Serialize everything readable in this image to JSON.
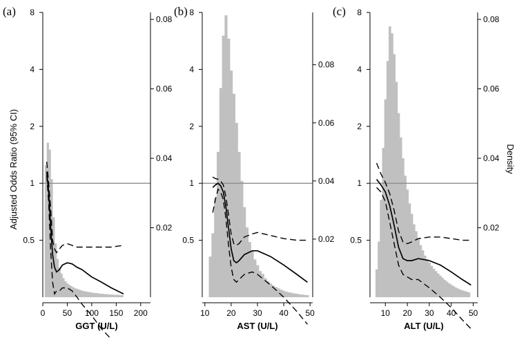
{
  "chart_data": {
    "type": "bar",
    "left_axis_title": "Adjusted Odds Ratio (95% CI)",
    "right_axis_title": "Density",
    "colors": {
      "histogram": "#c0c0c0",
      "reference": "#8c8c8c",
      "curve": "#000000"
    },
    "panels": [
      {
        "label": "(a)",
        "xlabel": "GGT (U/L)",
        "xlim": [
          0,
          220
        ],
        "x_ticks": [
          0,
          50,
          100,
          150,
          200
        ],
        "y_left_ticks": [
          "8",
          "4",
          "2",
          "1",
          "0.5"
        ],
        "y_left_values": [
          8,
          4,
          2,
          1,
          0.5
        ],
        "y_left_log_range": [
          0.25,
          8
        ],
        "y_right_ticks": [
          "0.02",
          "0.04",
          "0.06",
          "0.08"
        ],
        "y_right_values": [
          0.02,
          0.04,
          0.06,
          0.08
        ],
        "y_right_range": [
          0,
          0.082
        ],
        "reference_or": 1,
        "histogram": {
          "bin_width": 4,
          "x": [
            6,
            10,
            14,
            18,
            22,
            26,
            30,
            34,
            38,
            42,
            46,
            50,
            54,
            58,
            62,
            66,
            70,
            74,
            78,
            82,
            86,
            90,
            94,
            98,
            102,
            106,
            110,
            114,
            118,
            122,
            126,
            130,
            134,
            138,
            142,
            146,
            150,
            154,
            158,
            162
          ],
          "density": [
            0.038,
            0.0445,
            0.0425,
            0.034,
            0.023,
            0.0155,
            0.011,
            0.0085,
            0.0068,
            0.0055,
            0.0046,
            0.004,
            0.0036,
            0.0032,
            0.0029,
            0.0026,
            0.0024,
            0.0022,
            0.002,
            0.0018,
            0.0017,
            0.0016,
            0.0015,
            0.0014,
            0.0013,
            0.0012,
            0.0012,
            0.0011,
            0.001,
            0.001,
            0.0009,
            0.0009,
            0.0008,
            0.0008,
            0.0008,
            0.0007,
            0.0007,
            0.0007,
            0.0006,
            0.0006
          ]
        },
        "or_curve": {
          "x": [
            8,
            12,
            16,
            20,
            24,
            28,
            34,
            40,
            50,
            60,
            70,
            80,
            100,
            120,
            140,
            165
          ],
          "or": [
            1.15,
            0.9,
            0.6,
            0.42,
            0.36,
            0.34,
            0.35,
            0.37,
            0.38,
            0.375,
            0.36,
            0.35,
            0.32,
            0.3,
            0.28,
            0.26
          ],
          "lower": [
            1.1,
            0.8,
            0.45,
            0.3,
            0.26,
            0.27,
            0.27,
            0.28,
            0.28,
            0.27,
            0.25,
            0.23,
            0.2,
            0.17,
            0.15,
            0.13
          ],
          "upper": [
            1.3,
            1.0,
            0.75,
            0.5,
            0.45,
            0.43,
            0.45,
            0.47,
            0.48,
            0.47,
            0.46,
            0.46,
            0.46,
            0.46,
            0.46,
            0.47
          ]
        }
      },
      {
        "label": "(b)",
        "xlabel": "AST (U/L)",
        "xlim": [
          9,
          51
        ],
        "x_ticks": [
          10,
          20,
          30,
          40,
          50
        ],
        "y_left_ticks": [
          "8",
          "4",
          "2",
          "1",
          "0.5"
        ],
        "y_left_values": [
          8,
          4,
          2,
          1,
          0.5
        ],
        "y_left_log_range": [
          0.25,
          8
        ],
        "y_right_ticks": [
          "0.02",
          "0.04",
          "0.06",
          "0.08"
        ],
        "y_right_values": [
          0.02,
          0.04,
          0.06,
          0.08
        ],
        "y_right_range": [
          0,
          0.098
        ],
        "reference_or": 1,
        "histogram": {
          "bin_width": 1,
          "x": [
            12,
            13,
            14,
            15,
            16,
            17,
            18,
            19,
            20,
            21,
            22,
            23,
            24,
            25,
            26,
            27,
            28,
            29,
            30,
            31,
            32,
            33,
            34,
            35,
            36,
            37,
            38,
            39,
            40,
            41,
            42,
            43,
            44,
            45,
            46,
            47,
            48,
            49
          ],
          "density": [
            0.014,
            0.022,
            0.034,
            0.05,
            0.072,
            0.09,
            0.097,
            0.089,
            0.078,
            0.07,
            0.06,
            0.05,
            0.04,
            0.031,
            0.024,
            0.019,
            0.016,
            0.013,
            0.011,
            0.009,
            0.008,
            0.0065,
            0.0055,
            0.0047,
            0.004,
            0.0035,
            0.003,
            0.0026,
            0.0022,
            0.0019,
            0.0017,
            0.0015,
            0.0013,
            0.0012,
            0.001,
            0.0009,
            0.0008,
            0.0007
          ]
        },
        "or_curve": {
          "x": [
            13,
            14,
            15,
            16,
            17,
            18,
            19,
            20,
            21,
            22,
            23,
            25,
            28,
            30,
            35,
            40,
            45,
            49
          ],
          "or": [
            0.95,
            0.98,
            1.0,
            0.97,
            0.9,
            0.75,
            0.58,
            0.45,
            0.39,
            0.38,
            0.39,
            0.42,
            0.44,
            0.44,
            0.41,
            0.37,
            0.33,
            0.3
          ],
          "lower": [
            0.7,
            0.82,
            0.93,
            0.9,
            0.82,
            0.65,
            0.47,
            0.36,
            0.31,
            0.3,
            0.31,
            0.33,
            0.34,
            0.33,
            0.29,
            0.25,
            0.21,
            0.18
          ],
          "upper": [
            1.08,
            1.06,
            1.05,
            1.03,
            0.98,
            0.85,
            0.68,
            0.54,
            0.48,
            0.47,
            0.48,
            0.52,
            0.54,
            0.55,
            0.53,
            0.51,
            0.5,
            0.5
          ]
        }
      },
      {
        "label": "(c)",
        "xlabel": "ALT (U/L)",
        "xlim": [
          3,
          52
        ],
        "x_ticks": [
          10,
          20,
          30,
          40,
          50
        ],
        "y_left_ticks": [
          "8",
          "4",
          "2",
          "1",
          "0.5"
        ],
        "y_left_values": [
          8,
          4,
          2,
          1,
          0.5
        ],
        "y_left_log_range": [
          0.25,
          8
        ],
        "y_right_ticks": [
          "0.02",
          "0.04",
          "0.06",
          "0.08"
        ],
        "y_right_values": [
          0.02,
          0.04,
          0.06,
          0.08
        ],
        "y_right_range": [
          0,
          0.082
        ],
        "reference_or": 1,
        "histogram": {
          "bin_width": 1,
          "x": [
            6,
            7,
            8,
            9,
            10,
            11,
            12,
            13,
            14,
            15,
            16,
            17,
            18,
            19,
            20,
            21,
            22,
            23,
            24,
            25,
            26,
            27,
            28,
            29,
            30,
            31,
            32,
            33,
            34,
            35,
            36,
            37,
            38,
            39,
            40,
            41,
            42,
            43,
            44,
            45,
            46,
            47,
            48
          ],
          "density": [
            0.008,
            0.016,
            0.028,
            0.043,
            0.057,
            0.068,
            0.078,
            0.076,
            0.07,
            0.062,
            0.053,
            0.046,
            0.04,
            0.035,
            0.031,
            0.027,
            0.024,
            0.021,
            0.019,
            0.017,
            0.015,
            0.0135,
            0.012,
            0.011,
            0.01,
            0.009,
            0.0082,
            0.0075,
            0.0068,
            0.0062,
            0.0056,
            0.005,
            0.0045,
            0.004,
            0.0036,
            0.0032,
            0.0028,
            0.0025,
            0.0022,
            0.002,
            0.0018,
            0.0016,
            0.0014
          ]
        },
        "or_curve": {
          "x": [
            6,
            8,
            10,
            12,
            14,
            16,
            18,
            20,
            22,
            25,
            30,
            35,
            40,
            45,
            49
          ],
          "or": [
            1.05,
            0.98,
            0.9,
            0.76,
            0.6,
            0.46,
            0.4,
            0.39,
            0.39,
            0.4,
            0.39,
            0.37,
            0.34,
            0.31,
            0.29
          ],
          "lower": [
            0.95,
            0.9,
            0.8,
            0.62,
            0.48,
            0.37,
            0.33,
            0.32,
            0.31,
            0.31,
            0.28,
            0.25,
            0.22,
            0.19,
            0.17
          ],
          "upper": [
            1.28,
            1.12,
            1.01,
            0.88,
            0.72,
            0.56,
            0.49,
            0.48,
            0.49,
            0.51,
            0.52,
            0.52,
            0.51,
            0.5,
            0.5
          ]
        }
      }
    ]
  }
}
